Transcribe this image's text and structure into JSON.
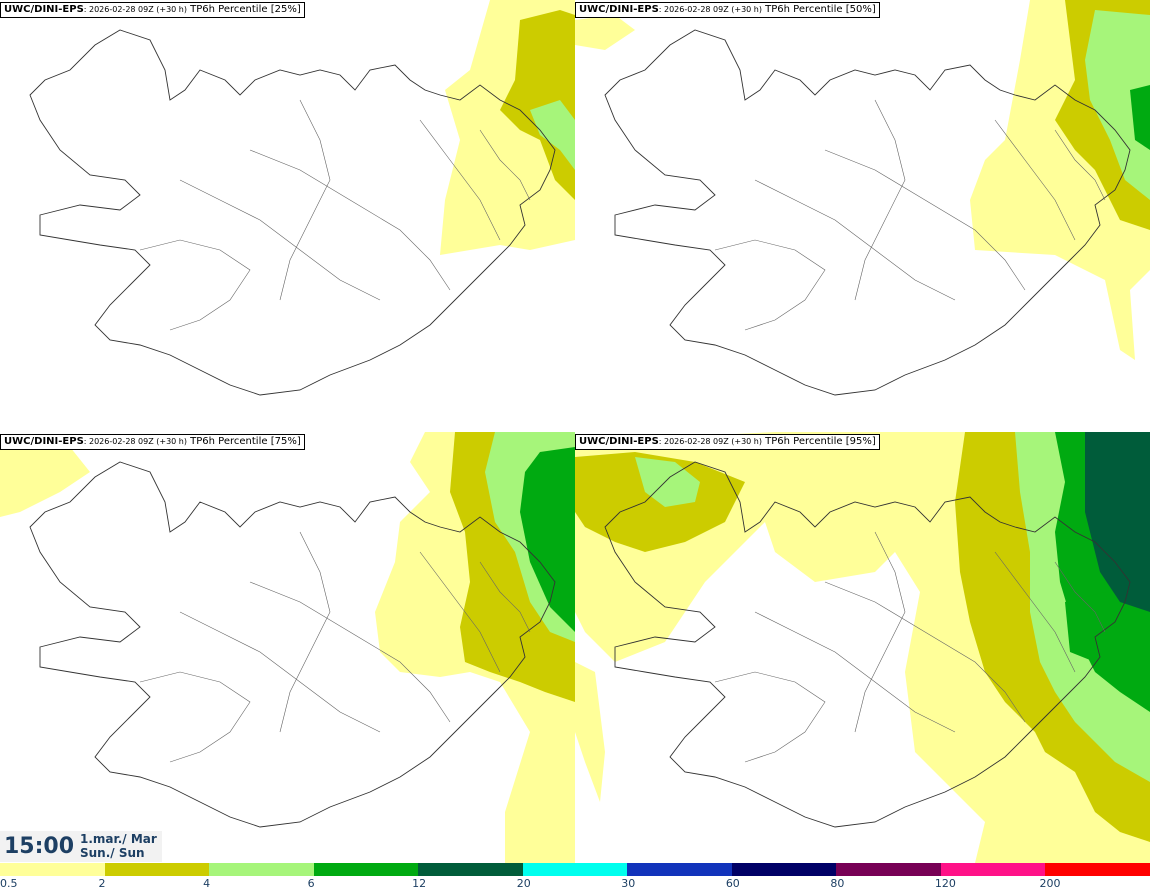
{
  "panels": [
    {
      "model": "UWC/DINI-EPS",
      "run": ": 2026-02-28 09Z (+30 h)",
      "product": " TP6h Percentile [25%]"
    },
    {
      "model": "UWC/DINI-EPS",
      "run": ": 2026-02-28 09Z (+30 h)",
      "product": " TP6h Percentile [50%]"
    },
    {
      "model": "UWC/DINI-EPS",
      "run": ": 2026-02-28 09Z (+30 h)",
      "product": " TP6h Percentile [75%]"
    },
    {
      "model": "UWC/DINI-EPS",
      "run": ": 2026-02-28 09Z (+30 h)",
      "product": " TP6h Percentile [95%]"
    }
  ],
  "valid_time": {
    "time": "15:00",
    "date_line1": "1.mar./ Mar",
    "date_line2": "Sun./ Sun"
  },
  "legend": {
    "labels": [
      "0.5",
      "2",
      "4",
      "6",
      "12",
      "20",
      "30",
      "60",
      "80",
      "120",
      "200"
    ],
    "colors": [
      "#ffff99",
      "#cccc00",
      "#a6f57a",
      "#00aa11",
      "#005c3a",
      "#00ffee",
      "#1133bb",
      "#000066",
      "#770055",
      "#ff1188",
      "#ff0000"
    ]
  },
  "icons": {
    "map": "iceland-outline-map"
  }
}
